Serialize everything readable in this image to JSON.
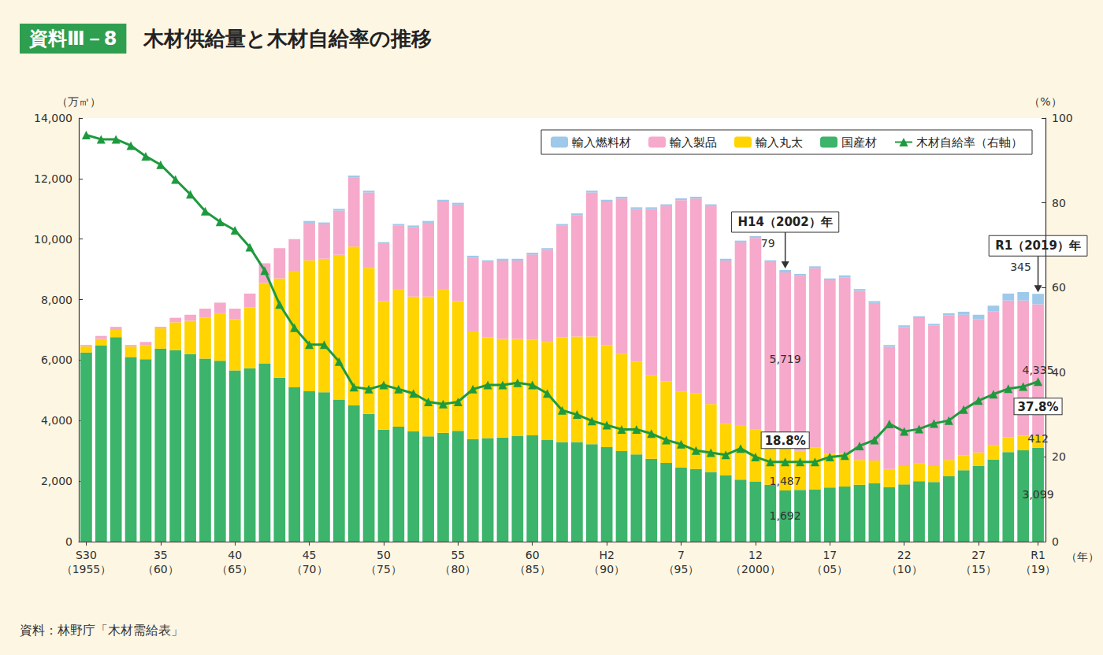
{
  "chart_data": {
    "type": "bar",
    "figure_label": "資料Ⅲ－8",
    "title": "木材供給量と木材自給率の推移",
    "source": "資料：林野庁「木材需給表」",
    "xlabel": "（年）",
    "ylabel": "（万㎥）",
    "y2label": "（%）",
    "stacked": true,
    "grid": false,
    "legend": "top-right",
    "categories": [
      "S30\n（1955）",
      null,
      null,
      null,
      null,
      "35\n（60）",
      null,
      null,
      null,
      null,
      "40\n（65）",
      null,
      null,
      null,
      null,
      "45\n（70）",
      null,
      null,
      null,
      null,
      "50\n（75）",
      null,
      null,
      null,
      null,
      "55\n（80）",
      null,
      null,
      null,
      null,
      "60\n（85）",
      null,
      null,
      null,
      null,
      "H2\n（90）",
      null,
      null,
      null,
      null,
      "7\n（95）",
      null,
      null,
      null,
      null,
      "12\n（2000）",
      null,
      null,
      null,
      null,
      "17\n（05）",
      null,
      null,
      null,
      null,
      "22\n（10）",
      null,
      null,
      null,
      null,
      "27\n（15）",
      null,
      null,
      null,
      "R1\n（19）"
    ],
    "ylim": [
      0,
      14000
    ],
    "yticks": [
      0,
      {
        "value": 2000,
        "label": "2,000"
      },
      {
        "value": 4000,
        "label": "4,000"
      },
      {
        "value": 6000,
        "label": "6,000"
      },
      {
        "value": 8000,
        "label": "8,000"
      },
      {
        "value": 10000,
        "label": "10,000"
      },
      {
        "value": 12000,
        "label": "12,000"
      },
      {
        "value": 14000,
        "label": "14,000"
      }
    ],
    "y2lim": [
      0,
      100
    ],
    "y2ticks": [
      0,
      20,
      40,
      60,
      80,
      100
    ],
    "series": [
      {
        "name": "国産材",
        "type": "bar",
        "color": "#3db46b",
        "values": [
          6250,
          6480,
          6760,
          6100,
          6030,
          6380,
          6330,
          6200,
          6050,
          5980,
          5660,
          5730,
          5880,
          5420,
          5100,
          4970,
          4940,
          4700,
          4500,
          4220,
          3700,
          3800,
          3650,
          3480,
          3600,
          3660,
          3390,
          3420,
          3440,
          3490,
          3510,
          3370,
          3290,
          3290,
          3220,
          3120,
          2990,
          2880,
          2740,
          2600,
          2450,
          2400,
          2300,
          2200,
          2050,
          1990,
          1880,
          1692,
          1710,
          1730,
          1790,
          1820,
          1880,
          1930,
          1800,
          1890,
          2000,
          1970,
          2160,
          2360,
          2500,
          2710,
          2960,
          3020,
          3099
        ],
        "value_labels": [
          null,
          null,
          null,
          null,
          null,
          null,
          null,
          null,
          null,
          null,
          null,
          null,
          null,
          null,
          null,
          null,
          null,
          null,
          null,
          null,
          null,
          null,
          null,
          null,
          null,
          null,
          null,
          null,
          null,
          null,
          null,
          null,
          null,
          null,
          null,
          null,
          null,
          null,
          null,
          null,
          null,
          null,
          null,
          null,
          null,
          null,
          null,
          "1,692",
          null,
          null,
          null,
          null,
          null,
          null,
          null,
          null,
          null,
          null,
          null,
          null,
          null,
          null,
          null,
          null,
          "3,099"
        ]
      },
      {
        "name": "輸入丸太",
        "type": "bar",
        "color": "#ffd400",
        "values": [
          200,
          220,
          240,
          350,
          470,
          670,
          920,
          1100,
          1350,
          1570,
          1690,
          2020,
          2670,
          3280,
          3850,
          4330,
          4410,
          4780,
          5250,
          4830,
          4250,
          4550,
          4450,
          4620,
          4750,
          4290,
          3560,
          3330,
          3260,
          3210,
          3170,
          3230,
          3460,
          3490,
          3560,
          3380,
          3210,
          3070,
          2760,
          2700,
          2500,
          2500,
          2250,
          1700,
          1800,
          1710,
          1520,
          1487,
          1290,
          1370,
          1110,
          1080,
          820,
          750,
          600,
          610,
          600,
          530,
          540,
          490,
          450,
          490,
          490,
          480,
          412
        ],
        "value_labels": [
          null,
          null,
          null,
          null,
          null,
          null,
          null,
          null,
          null,
          null,
          null,
          null,
          null,
          null,
          null,
          null,
          null,
          null,
          null,
          null,
          null,
          null,
          null,
          null,
          null,
          null,
          null,
          null,
          null,
          null,
          null,
          null,
          null,
          null,
          null,
          null,
          null,
          null,
          null,
          null,
          null,
          null,
          null,
          null,
          null,
          null,
          null,
          "1,487",
          null,
          null,
          null,
          null,
          null,
          null,
          null,
          null,
          null,
          null,
          null,
          null,
          null,
          null,
          null,
          null,
          "412"
        ]
      },
      {
        "name": "輸入製品",
        "type": "bar",
        "color": "#f6a9cb",
        "values": [
          50,
          100,
          100,
          50,
          100,
          50,
          150,
          200,
          300,
          350,
          350,
          450,
          650,
          1000,
          1050,
          1240,
          1140,
          1460,
          2290,
          2490,
          1890,
          2090,
          2290,
          2440,
          2890,
          3190,
          2440,
          2490,
          2590,
          2590,
          2810,
          3040,
          3690,
          4010,
          4760,
          4740,
          5140,
          5040,
          5490,
          5790,
          6340,
          6440,
          6540,
          5390,
          6040,
          6340,
          5840,
          5719,
          5790,
          5940,
          5740,
          5840,
          5590,
          5210,
          4040,
          4590,
          4790,
          4640,
          4790,
          4650,
          4400,
          4420,
          4520,
          4470,
          4335
        ],
        "value_labels": [
          null,
          null,
          null,
          null,
          null,
          null,
          null,
          null,
          null,
          null,
          null,
          null,
          null,
          null,
          null,
          null,
          null,
          null,
          null,
          null,
          null,
          null,
          null,
          null,
          null,
          null,
          null,
          null,
          null,
          null,
          null,
          null,
          null,
          null,
          null,
          null,
          null,
          null,
          null,
          null,
          null,
          null,
          null,
          null,
          null,
          null,
          null,
          "5,719",
          null,
          null,
          null,
          null,
          null,
          null,
          null,
          null,
          null,
          null,
          null,
          null,
          null,
          null,
          null,
          null,
          "4,335"
        ]
      },
      {
        "name": "輸入燃料材",
        "type": "bar",
        "color": "#9ec9ea",
        "values": [
          0,
          0,
          0,
          0,
          0,
          0,
          0,
          0,
          0,
          0,
          0,
          0,
          0,
          0,
          0,
          60,
          60,
          60,
          60,
          60,
          60,
          60,
          60,
          60,
          60,
          60,
          60,
          60,
          60,
          60,
          60,
          60,
          60,
          60,
          60,
          60,
          60,
          60,
          60,
          60,
          60,
          60,
          60,
          60,
          60,
          60,
          60,
          79,
          60,
          60,
          60,
          60,
          60,
          60,
          60,
          60,
          60,
          60,
          60,
          100,
          150,
          180,
          230,
          280,
          345
        ],
        "value_labels": [
          null,
          null,
          null,
          null,
          null,
          null,
          null,
          null,
          null,
          null,
          null,
          null,
          null,
          null,
          null,
          null,
          null,
          null,
          null,
          null,
          null,
          null,
          null,
          null,
          null,
          null,
          null,
          null,
          null,
          null,
          null,
          null,
          null,
          null,
          null,
          null,
          null,
          null,
          null,
          null,
          null,
          null,
          null,
          null,
          null,
          null,
          null,
          "79",
          null,
          null,
          null,
          null,
          null,
          null,
          null,
          null,
          null,
          null,
          null,
          null,
          null,
          null,
          null,
          null,
          "345"
        ]
      },
      {
        "name": "木材自給率（右軸）",
        "type": "line",
        "axis": "y2",
        "color": "#1e9a3e",
        "marker": "triangle",
        "values": [
          96,
          95,
          95,
          93.5,
          91,
          89,
          85.5,
          82,
          78,
          75.5,
          73.5,
          69.5,
          64,
          56,
          50.5,
          46.5,
          46.5,
          42.5,
          36.5,
          36,
          37,
          36,
          35,
          33,
          32.5,
          33,
          36,
          37,
          37,
          37.5,
          37,
          35,
          31,
          30,
          28.5,
          27.5,
          26.5,
          26.5,
          25.5,
          24,
          23,
          21.5,
          21,
          20.5,
          22,
          20,
          18.8,
          18.8,
          18.8,
          18.8,
          20,
          20.3,
          22.6,
          24,
          27.8,
          26,
          26.6,
          27.9,
          28.6,
          31.2,
          33.3,
          34.8,
          36.1,
          36.6,
          37.8
        ],
        "value_labels": [
          null,
          null,
          null,
          null,
          null,
          null,
          null,
          null,
          null,
          null,
          null,
          null,
          null,
          null,
          null,
          null,
          null,
          null,
          null,
          null,
          null,
          null,
          null,
          null,
          null,
          null,
          null,
          null,
          null,
          null,
          null,
          null,
          null,
          null,
          null,
          null,
          null,
          null,
          null,
          null,
          null,
          null,
          null,
          null,
          null,
          null,
          null,
          "18.8%",
          null,
          null,
          null,
          null,
          null,
          null,
          null,
          null,
          null,
          null,
          null,
          null,
          null,
          null,
          null,
          null,
          "37.8%"
        ]
      }
    ],
    "annotations": [
      {
        "text": "H14（2002）年",
        "category_index": 47
      },
      {
        "text": "R1（2019）年",
        "category_index": 64
      }
    ]
  }
}
